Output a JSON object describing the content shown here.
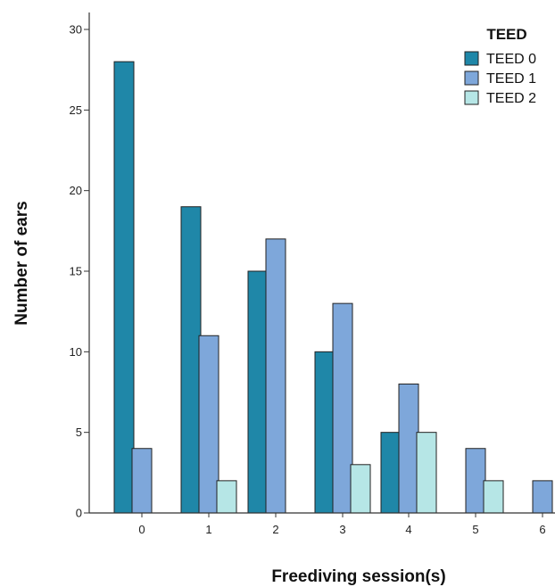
{
  "chart_data": {
    "type": "bar",
    "categories": [
      "0",
      "1",
      "2",
      "3",
      "4",
      "5",
      "6"
    ],
    "series": [
      {
        "name": "TEED 0",
        "color": "#1f87a8",
        "values": [
          28,
          19,
          15,
          10,
          5,
          null,
          null
        ]
      },
      {
        "name": "TEED 1",
        "color": "#7ea7da",
        "values": [
          4,
          11,
          17,
          13,
          8,
          4,
          2
        ]
      },
      {
        "name": "TEED 2",
        "color": "#b6e6e6",
        "values": [
          null,
          2,
          null,
          3,
          5,
          2,
          null
        ]
      }
    ],
    "title": "",
    "xlabel": "Freediving session(s)",
    "ylabel": "Number of ears",
    "ylim": [
      0,
      30
    ],
    "yticks": [
      0,
      5,
      10,
      15,
      20,
      25,
      30
    ],
    "grid": false,
    "legend": {
      "title": "TEED",
      "placement": "top-right"
    }
  }
}
